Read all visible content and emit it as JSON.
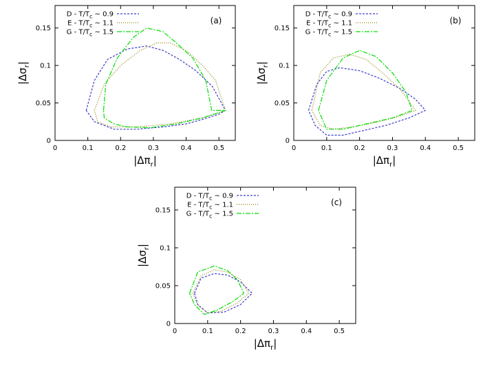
{
  "chart_data": [
    {
      "type": "line",
      "panel_label": "(a)",
      "xlabel": {
        "main": "|Δπ",
        "sub": "r",
        "end": "|"
      },
      "ylabel": {
        "main": "|Δσ",
        "sub": "r",
        "end": "|"
      },
      "xlim": [
        0,
        0.55
      ],
      "ylim": [
        0,
        0.18
      ],
      "x_ticks": [
        0,
        0.1,
        0.2,
        0.3,
        0.4,
        0.5
      ],
      "x_tick_labels": [
        "0",
        "0.1",
        "0.2",
        "0.3",
        "0.4",
        "0.5"
      ],
      "y_ticks": [
        0,
        0.05,
        0.1,
        0.15
      ],
      "y_tick_labels": [
        "0",
        "0.05",
        "0.1",
        "0.15"
      ],
      "grid": false,
      "legend_position": "top-left",
      "series": [
        {
          "name": {
            "pre": "D - T/T",
            "sub": "c",
            "post": " ~ 0.9"
          },
          "color": "#3a3acc",
          "dash": "3,2",
          "x": [
            0.095,
            0.12,
            0.16,
            0.22,
            0.28,
            0.33,
            0.38,
            0.43,
            0.48,
            0.52,
            0.5,
            0.45,
            0.4,
            0.33,
            0.25,
            0.18,
            0.12,
            0.095
          ],
          "y": [
            0.04,
            0.08,
            0.108,
            0.122,
            0.126,
            0.12,
            0.108,
            0.093,
            0.072,
            0.04,
            0.035,
            0.028,
            0.022,
            0.018,
            0.015,
            0.015,
            0.025,
            0.04
          ]
        },
        {
          "name": {
            "pre": "E - T/T",
            "sub": "c",
            "post": " ~ 1.1"
          },
          "color": "#8a7a00",
          "dash": "1,2",
          "x": [
            0.12,
            0.15,
            0.2,
            0.26,
            0.31,
            0.35,
            0.4,
            0.45,
            0.49,
            0.52,
            0.45,
            0.35,
            0.25,
            0.17,
            0.13,
            0.12
          ],
          "y": [
            0.04,
            0.075,
            0.1,
            0.12,
            0.13,
            0.13,
            0.12,
            0.1,
            0.08,
            0.04,
            0.03,
            0.022,
            0.018,
            0.018,
            0.025,
            0.04
          ]
        },
        {
          "name": {
            "pre": "G - T/T",
            "sub": "c",
            "post": " ~ 1.5"
          },
          "color": "#00dd00",
          "dash": "7,2,2,2",
          "x": [
            0.148,
            0.155,
            0.19,
            0.24,
            0.28,
            0.33,
            0.37,
            0.42,
            0.46,
            0.478,
            0.52,
            0.45,
            0.37,
            0.29,
            0.22,
            0.18,
            0.15,
            0.148
          ],
          "y": [
            0.04,
            0.075,
            0.11,
            0.138,
            0.15,
            0.145,
            0.13,
            0.11,
            0.08,
            0.04,
            0.04,
            0.03,
            0.022,
            0.017,
            0.018,
            0.022,
            0.03,
            0.04
          ]
        }
      ]
    },
    {
      "type": "line",
      "panel_label": "(b)",
      "xlabel": {
        "main": "|Δπ",
        "sub": "r",
        "end": "|"
      },
      "ylabel": {
        "main": "|Δσ",
        "sub": "r",
        "end": "|"
      },
      "xlim": [
        0,
        0.55
      ],
      "ylim": [
        0,
        0.18
      ],
      "x_ticks": [
        0,
        0.1,
        0.2,
        0.3,
        0.4,
        0.5
      ],
      "x_tick_labels": [
        "0",
        "0.1",
        "0.2",
        "0.3",
        "0.4",
        "0.5"
      ],
      "y_ticks": [
        0,
        0.05,
        0.1,
        0.15
      ],
      "y_tick_labels": [
        "0",
        "0.05",
        "0.1",
        "0.15"
      ],
      "grid": false,
      "legend_position": "top-left",
      "series": [
        {
          "name": {
            "pre": "D - T/T",
            "sub": "c",
            "post": " ~ 0.9"
          },
          "color": "#3a3acc",
          "dash": "3,2",
          "x": [
            0.045,
            0.07,
            0.1,
            0.14,
            0.2,
            0.26,
            0.32,
            0.37,
            0.4,
            0.35,
            0.28,
            0.2,
            0.15,
            0.1,
            0.065,
            0.045
          ],
          "y": [
            0.04,
            0.075,
            0.092,
            0.097,
            0.093,
            0.083,
            0.07,
            0.055,
            0.04,
            0.03,
            0.02,
            0.012,
            0.007,
            0.007,
            0.02,
            0.04
          ]
        },
        {
          "name": {
            "pre": "E - T/T",
            "sub": "c",
            "post": " ~ 1.1"
          },
          "color": "#8a7a00",
          "dash": "1,2",
          "x": [
            0.055,
            0.08,
            0.12,
            0.17,
            0.22,
            0.27,
            0.32,
            0.37,
            0.32,
            0.25,
            0.18,
            0.12,
            0.08,
            0.055
          ],
          "y": [
            0.04,
            0.09,
            0.11,
            0.115,
            0.108,
            0.09,
            0.07,
            0.04,
            0.032,
            0.024,
            0.018,
            0.015,
            0.02,
            0.04
          ]
        },
        {
          "name": {
            "pre": "G - T/T",
            "sub": "c",
            "post": " ~ 1.5"
          },
          "color": "#00dd00",
          "dash": "7,2,2,2",
          "x": [
            0.075,
            0.1,
            0.15,
            0.2,
            0.25,
            0.3,
            0.34,
            0.36,
            0.3,
            0.22,
            0.15,
            0.1,
            0.075
          ],
          "y": [
            0.04,
            0.08,
            0.11,
            0.12,
            0.112,
            0.09,
            0.065,
            0.04,
            0.03,
            0.022,
            0.015,
            0.015,
            0.04
          ]
        }
      ]
    },
    {
      "type": "line",
      "panel_label": "(c)",
      "xlabel": {
        "main": "|Δπ",
        "sub": "r",
        "end": "|"
      },
      "ylabel": {
        "main": "|Δσ",
        "sub": "r",
        "end": "|"
      },
      "xlim": [
        0,
        0.55
      ],
      "ylim": [
        0,
        0.18
      ],
      "x_ticks": [
        0,
        0.1,
        0.2,
        0.3,
        0.4,
        0.5
      ],
      "x_tick_labels": [
        "0",
        "0.1",
        "0.2",
        "0.3",
        "0.4",
        "0.5"
      ],
      "y_ticks": [
        0,
        0.05,
        0.1,
        0.15
      ],
      "y_tick_labels": [
        "0",
        "0.05",
        "0.1",
        "0.15"
      ],
      "grid": false,
      "legend_position": "top-left",
      "series": [
        {
          "name": {
            "pre": "D - T/T",
            "sub": "c",
            "post": " ~ 0.9"
          },
          "color": "#3a3acc",
          "dash": "3,2",
          "x": [
            0.06,
            0.08,
            0.12,
            0.16,
            0.2,
            0.235,
            0.2,
            0.15,
            0.1,
            0.07,
            0.06
          ],
          "y": [
            0.04,
            0.06,
            0.066,
            0.064,
            0.055,
            0.04,
            0.025,
            0.015,
            0.014,
            0.025,
            0.04
          ]
        },
        {
          "name": {
            "pre": "E - T/T",
            "sub": "c",
            "post": " ~ 1.1"
          },
          "color": "#8a7a00",
          "dash": "1,2",
          "x": [
            0.055,
            0.08,
            0.12,
            0.16,
            0.2,
            0.225,
            0.19,
            0.14,
            0.1,
            0.07,
            0.055
          ],
          "y": [
            0.04,
            0.063,
            0.071,
            0.068,
            0.058,
            0.04,
            0.027,
            0.016,
            0.014,
            0.024,
            0.04
          ]
        },
        {
          "name": {
            "pre": "G - T/T",
            "sub": "c",
            "post": " ~ 1.5"
          },
          "color": "#00dd00",
          "dash": "7,2,2,2",
          "x": [
            0.045,
            0.07,
            0.12,
            0.16,
            0.19,
            0.21,
            0.18,
            0.13,
            0.09,
            0.06,
            0.045
          ],
          "y": [
            0.04,
            0.068,
            0.076,
            0.07,
            0.058,
            0.04,
            0.03,
            0.018,
            0.012,
            0.025,
            0.04
          ]
        }
      ]
    }
  ]
}
